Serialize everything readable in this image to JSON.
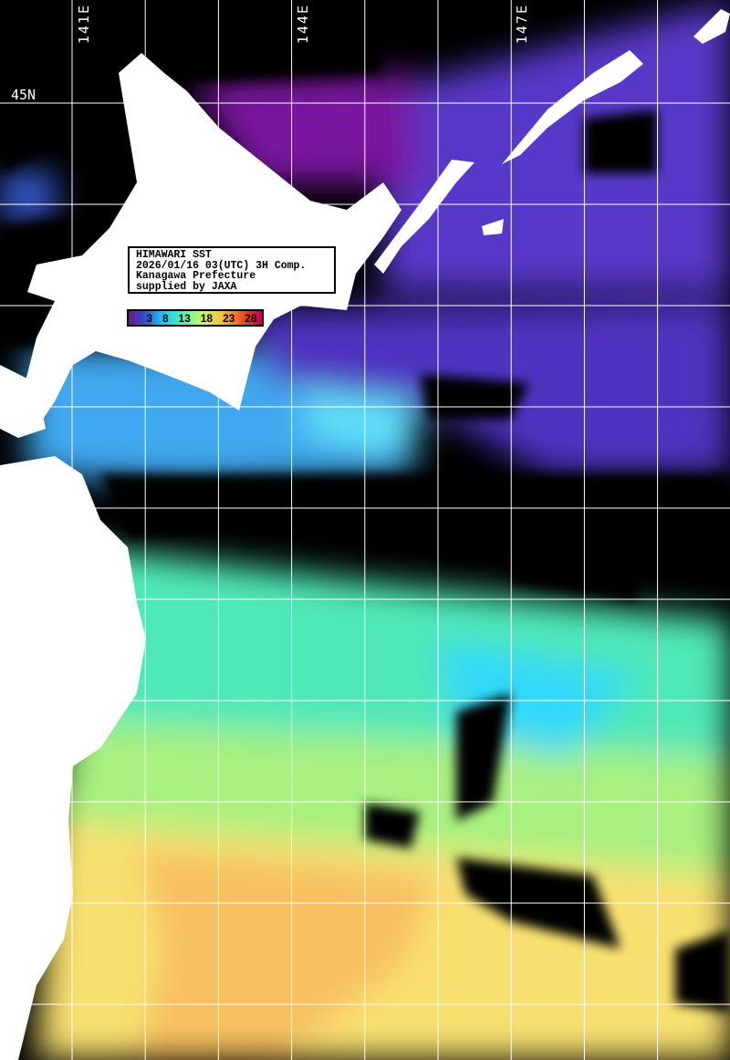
{
  "info_box": {
    "title": "HIMAWARI SST",
    "datetime": "2026/01/16 03(UTC) 3H Comp.",
    "organization": "Kanagawa Prefecture",
    "credit": "supplied by JAXA"
  },
  "color_scale": {
    "ticks": [
      "3",
      "8",
      "13",
      "18",
      "23",
      "28"
    ],
    "colors": [
      "#6a1a8a",
      "#3a40c8",
      "#20c0f8",
      "#40f0c0",
      "#c8f860",
      "#f8c040",
      "#f05020",
      "#c00050"
    ]
  },
  "longitude_labels": [
    "141E",
    "144E",
    "147E"
  ],
  "latitude_labels": [
    "45N"
  ],
  "colors": {
    "land": "#ffffff",
    "cloud": "#000000",
    "grid": "#ffffff"
  }
}
